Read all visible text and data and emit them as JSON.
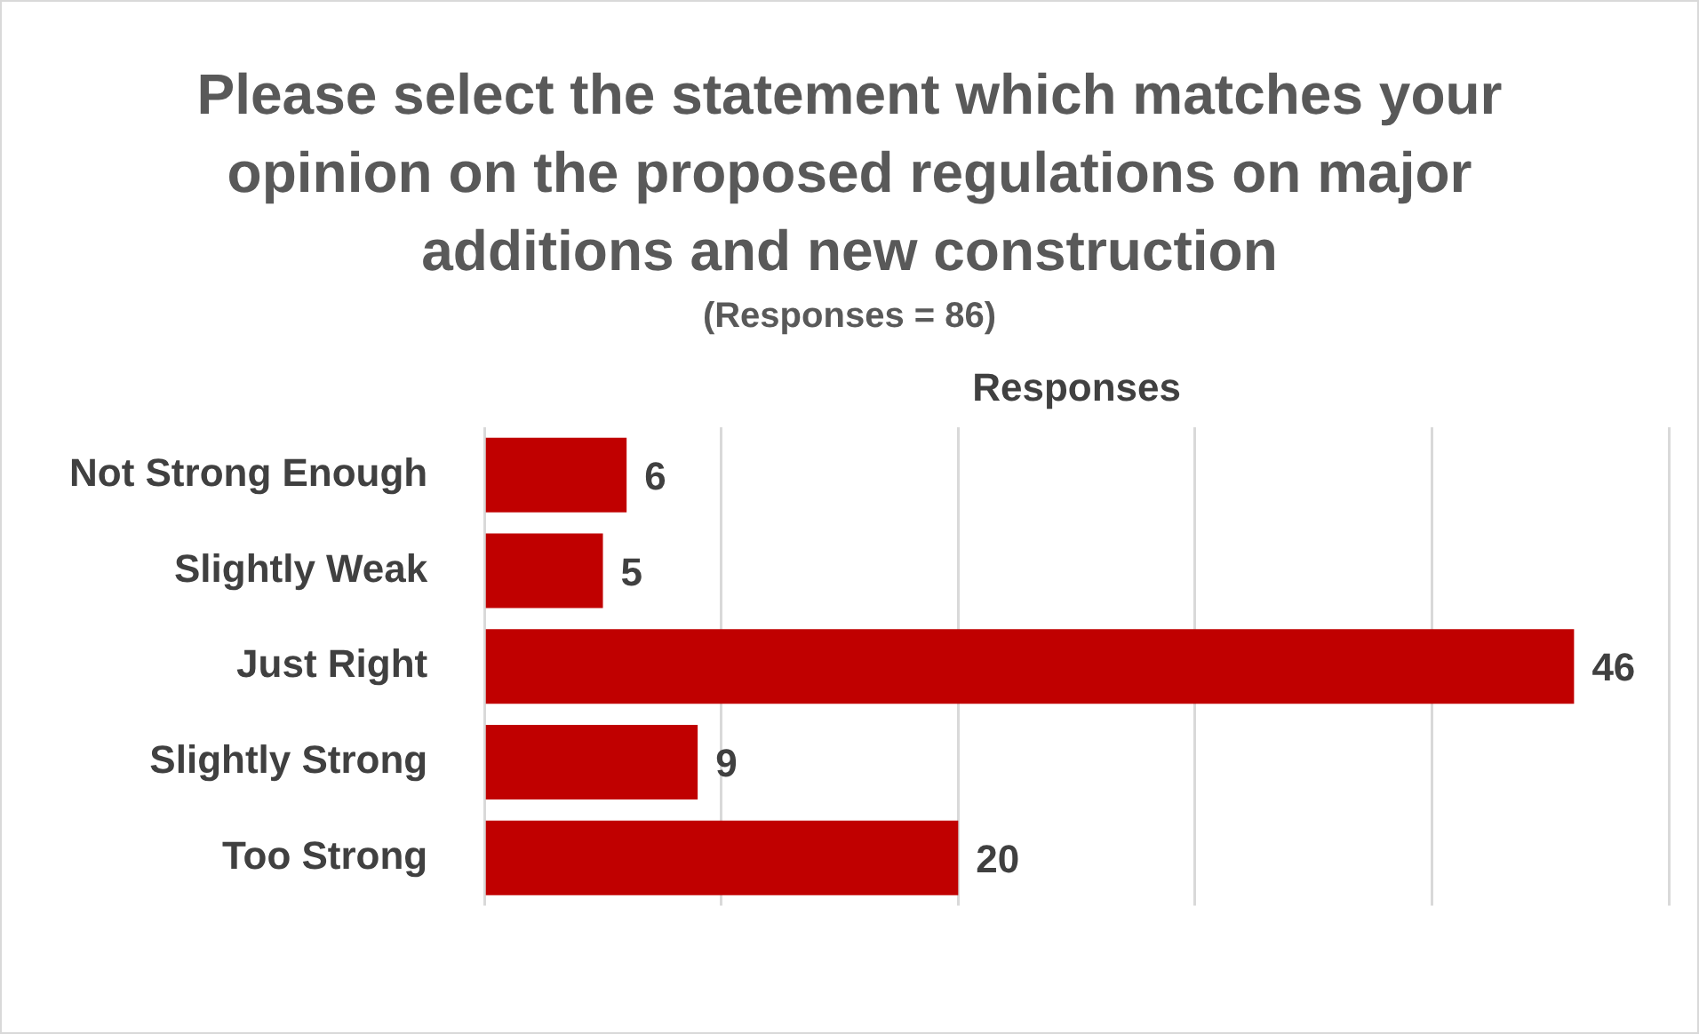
{
  "chart_data": {
    "type": "bar",
    "orientation": "horizontal",
    "title": "Please select the statement which matches your opinion on the proposed regulations on major additions and new construction",
    "subtitle": "(Responses = 86)",
    "xlabel": "Responses",
    "categories": [
      "Not Strong Enough",
      "Slightly Weak",
      "Just Right",
      "Slightly Strong",
      "Too Strong"
    ],
    "values": [
      6,
      5,
      46,
      9,
      20
    ],
    "color": "#c00000",
    "xlim": [
      0,
      50
    ],
    "xticks": [
      {
        "value": 0,
        "label": null
      },
      {
        "value": 10,
        "label": null
      },
      {
        "value": 20,
        "label": null
      },
      {
        "value": 30,
        "label": null
      },
      {
        "value": 40,
        "label": null
      },
      {
        "value": 50,
        "label": null
      }
    ],
    "tick_labels": "y",
    "grid": "x",
    "data_labels": true,
    "legend": false
  }
}
